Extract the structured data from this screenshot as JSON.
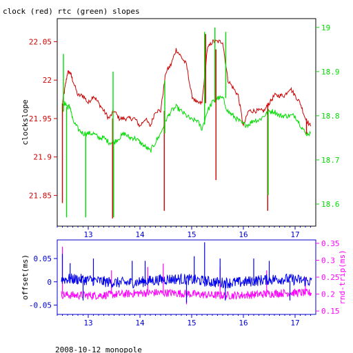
{
  "page": {
    "title": "clock (red) rtc (green) slopes",
    "footer": "2008-10-12 monopole"
  },
  "colors": {
    "clock": "#cc0000",
    "rtc": "#00dd00",
    "offset": "#0000ee",
    "rndtrip": "#ff00ff",
    "axis_bottom": "#0000cc",
    "frame": "#000000"
  },
  "chart_data": [
    {
      "type": "line",
      "title": "clock (red) rtc (green) slopes",
      "ylabel": "clockslope",
      "y2label": "",
      "xlim": [
        12.4,
        17.4
      ],
      "ylim": [
        21.81,
        22.08
      ],
      "y2lim": [
        18.55,
        19.02
      ],
      "xticks": [
        13,
        14,
        15,
        16,
        17
      ],
      "xticklabels": [
        "13",
        "14",
        "15",
        "16",
        "17"
      ],
      "yticks": [
        21.85,
        21.9,
        21.95,
        22,
        22.05
      ],
      "yticklabels": [
        "21.85",
        "21.9",
        "21.95",
        "22",
        "22.05"
      ],
      "y2ticks": [
        18.6,
        18.7,
        18.8,
        18.9,
        19
      ],
      "y2ticklabels": [
        "18.6",
        "18.7",
        "18.8",
        "18.9",
        "19"
      ],
      "grid": false,
      "series": [
        {
          "name": "clock",
          "axis": "left",
          "x": [
            12.5,
            12.55,
            12.6,
            12.65,
            12.7,
            12.8,
            12.9,
            13.0,
            13.1,
            13.2,
            13.3,
            13.4,
            13.5,
            13.6,
            13.7,
            13.8,
            13.9,
            14.0,
            14.1,
            14.2,
            14.3,
            14.4,
            14.5,
            14.6,
            14.7,
            14.8,
            14.9,
            15.0,
            15.1,
            15.2,
            15.3,
            15.4,
            15.5,
            15.6,
            15.7,
            15.8,
            15.9,
            16.0,
            16.1,
            16.2,
            16.3,
            16.4,
            16.5,
            16.6,
            16.7,
            16.8,
            16.9,
            17.0,
            17.1,
            17.2,
            17.3
          ],
          "y": [
            21.97,
            21.99,
            22.01,
            22.01,
            22.0,
            21.98,
            21.98,
            21.97,
            21.98,
            21.97,
            21.96,
            21.95,
            21.96,
            21.95,
            21.95,
            21.95,
            21.95,
            21.94,
            21.95,
            21.94,
            21.96,
            21.96,
            22.01,
            22.02,
            22.04,
            22.03,
            22.02,
            21.98,
            21.97,
            21.97,
            22.04,
            22.05,
            22.05,
            22.05,
            22.0,
            21.99,
            21.98,
            21.94,
            21.96,
            21.96,
            21.96,
            21.96,
            21.97,
            21.98,
            21.98,
            21.98,
            21.99,
            21.98,
            21.97,
            21.95,
            21.94
          ]
        },
        {
          "name": "rtc",
          "axis": "right",
          "x": [
            12.5,
            12.55,
            12.6,
            12.65,
            12.7,
            12.8,
            12.9,
            13.0,
            13.1,
            13.2,
            13.3,
            13.4,
            13.5,
            13.6,
            13.7,
            13.8,
            13.9,
            14.0,
            14.1,
            14.2,
            14.3,
            14.4,
            14.5,
            14.6,
            14.7,
            14.8,
            14.9,
            15.0,
            15.1,
            15.2,
            15.3,
            15.4,
            15.5,
            15.6,
            15.7,
            15.8,
            15.9,
            16.0,
            16.1,
            16.2,
            16.3,
            16.4,
            16.5,
            16.6,
            16.7,
            16.8,
            16.9,
            17.0,
            17.1,
            17.2,
            17.3
          ],
          "y": [
            18.81,
            18.83,
            18.82,
            18.82,
            18.79,
            18.77,
            18.76,
            18.76,
            18.76,
            18.75,
            18.75,
            18.74,
            18.74,
            18.75,
            18.76,
            18.75,
            18.75,
            18.74,
            18.73,
            18.72,
            18.74,
            18.76,
            18.79,
            18.81,
            18.82,
            18.81,
            18.8,
            18.79,
            18.79,
            18.77,
            18.81,
            18.83,
            18.84,
            18.84,
            18.81,
            18.8,
            18.79,
            18.78,
            18.78,
            18.79,
            18.79,
            18.8,
            18.81,
            18.81,
            18.8,
            18.8,
            18.8,
            18.8,
            18.78,
            18.76,
            18.76
          ]
        }
      ],
      "spikes": [
        {
          "series": "clock",
          "x": 12.5,
          "y0": 21.97,
          "y1": 21.84
        },
        {
          "series": "rtc",
          "x": 12.52,
          "y0": 18.81,
          "y1": 18.94
        },
        {
          "series": "rtc",
          "x": 12.58,
          "y0": 18.82,
          "y1": 18.57
        },
        {
          "series": "rtc",
          "x": 12.95,
          "y0": 18.76,
          "y1": 18.57
        },
        {
          "series": "clock",
          "x": 13.47,
          "y0": 21.95,
          "y1": 21.82
        },
        {
          "series": "rtc",
          "x": 13.48,
          "y0": 18.74,
          "y1": 18.9
        },
        {
          "series": "rtc",
          "x": 13.49,
          "y0": 18.74,
          "y1": 18.57
        },
        {
          "series": "clock",
          "x": 14.47,
          "y0": 21.96,
          "y1": 21.83
        },
        {
          "series": "rtc",
          "x": 14.48,
          "y0": 18.76,
          "y1": 18.88
        },
        {
          "series": "rtc",
          "x": 15.25,
          "y0": 18.78,
          "y1": 18.99
        },
        {
          "series": "clock",
          "x": 15.27,
          "y0": 21.97,
          "y1": 22.06
        },
        {
          "series": "rtc",
          "x": 15.45,
          "y0": 18.83,
          "y1": 19.0
        },
        {
          "series": "clock",
          "x": 15.47,
          "y0": 22.04,
          "y1": 21.87
        },
        {
          "series": "rtc",
          "x": 15.66,
          "y0": 18.84,
          "y1": 18.99
        },
        {
          "series": "clock",
          "x": 16.47,
          "y0": 21.97,
          "y1": 21.83
        },
        {
          "series": "rtc",
          "x": 16.48,
          "y0": 18.81,
          "y1": 18.62
        },
        {
          "series": "clock",
          "x": 17.22,
          "y0": 21.95,
          "y1": 21.93
        }
      ]
    },
    {
      "type": "line",
      "ylabel": "offset(ms)",
      "y2label": "rnd-trip(ms)",
      "xlim": [
        12.4,
        17.4
      ],
      "ylim": [
        -0.07,
        0.09
      ],
      "y2lim": [
        0.14,
        0.36
      ],
      "xticks": [
        13,
        14,
        15,
        16,
        17
      ],
      "xticklabels": [
        "13",
        "14",
        "15",
        "16",
        "17"
      ],
      "yticks": [
        -0.05,
        0,
        0.05
      ],
      "yticklabels": [
        "-0.05",
        "0",
        "0.05"
      ],
      "y2ticks": [
        0.15,
        0.2,
        0.25,
        0.3,
        0.35
      ],
      "y2ticklabels": [
        "0.15",
        "0.2",
        "0.25",
        "0.3",
        "0.35"
      ],
      "grid": false,
      "series": [
        {
          "name": "offset",
          "axis": "left",
          "mean": 0.002,
          "noise": 0.012,
          "spikes": [
            [
              12.5,
              0.06
            ],
            [
              12.65,
              0.04
            ],
            [
              13.1,
              0.05
            ],
            [
              13.85,
              0.045
            ],
            [
              14.1,
              0.045
            ],
            [
              15.05,
              0.055
            ],
            [
              15.25,
              0.085
            ],
            [
              15.55,
              0.05
            ],
            [
              16.2,
              0.05
            ],
            [
              16.5,
              0.045
            ],
            [
              12.9,
              -0.04
            ],
            [
              14.9,
              -0.045
            ],
            [
              15.65,
              -0.04
            ],
            [
              16.9,
              -0.04
            ]
          ]
        },
        {
          "name": "rnd-trip",
          "axis": "right",
          "mean": 0.2,
          "noise": 0.012,
          "spikes": [
            [
              12.5,
              0.34
            ],
            [
              13.45,
              0.27
            ],
            [
              14.15,
              0.28
            ],
            [
              14.45,
              0.29
            ],
            [
              15.55,
              0.28
            ],
            [
              16.45,
              0.27
            ],
            [
              17.2,
              0.25
            ],
            [
              14.9,
              0.17
            ]
          ]
        }
      ]
    }
  ]
}
